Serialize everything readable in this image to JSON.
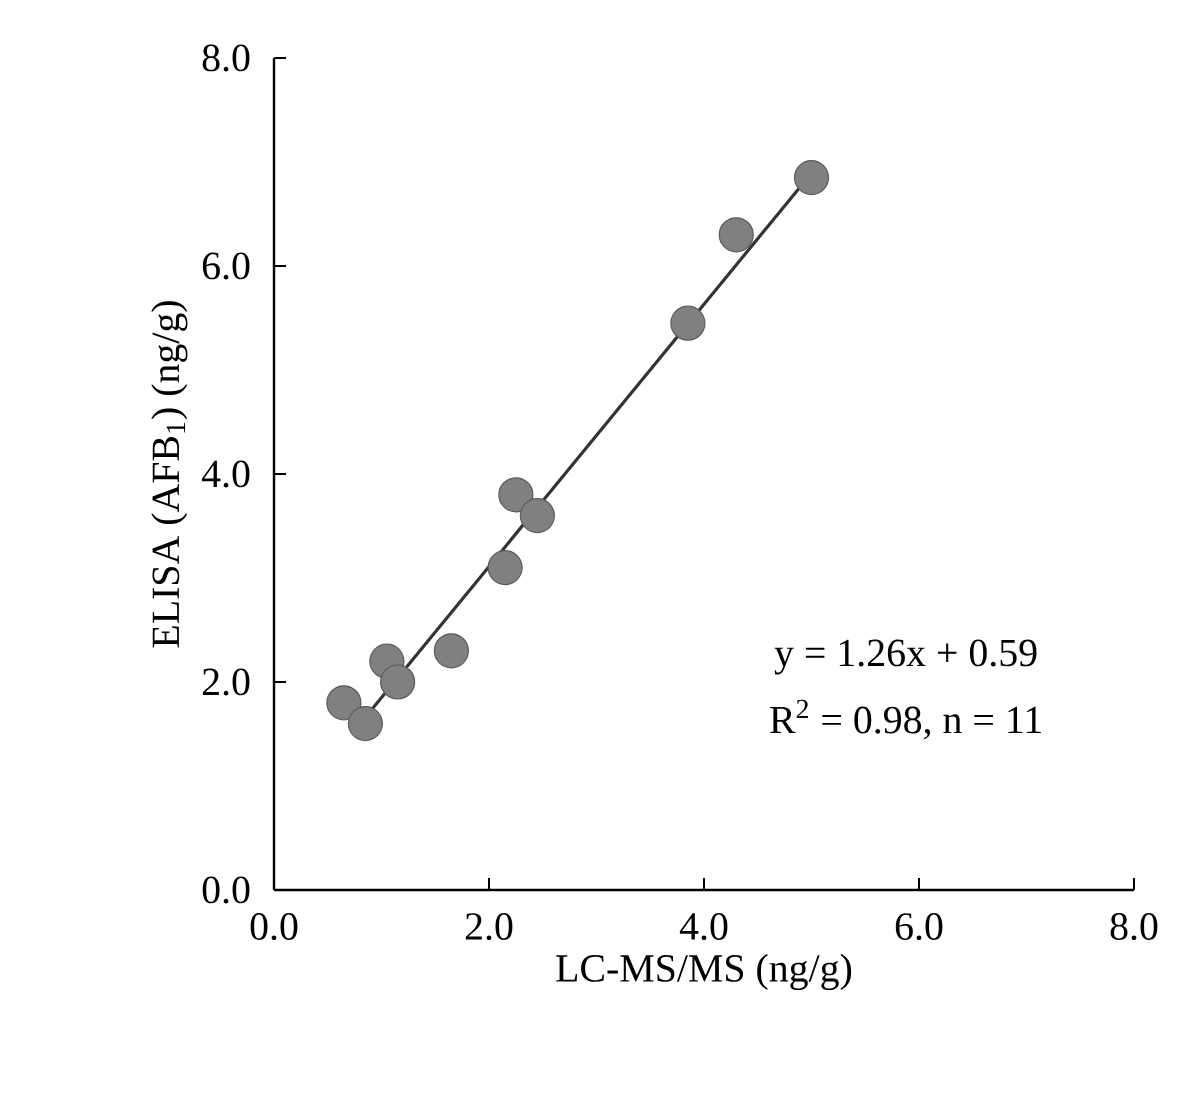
{
  "chart_data": {
    "type": "scatter",
    "xlabel": "LC-MS/MS (ng/g)",
    "ylabel": "ELISA (AFB$_{1}$) (ng/g)",
    "annotations": [
      "y = 1.26x + 0.59",
      "R$^{2}$ = 0.98, n = 11"
    ],
    "series": [
      {
        "color": "#808080",
        "marker": "circle",
        "x": [
          5.0,
          4.3,
          3.85,
          2.25,
          2.45,
          2.15,
          1.65,
          1.05,
          1.15,
          0.65,
          0.85
        ],
        "values": [
          6.85,
          6.3,
          5.45,
          3.8,
          3.6,
          3.1,
          2.3,
          2.2,
          2.0,
          1.8,
          1.6
        ]
      },
      {
        "type": "line",
        "color": "#333333",
        "marker": "none",
        "line_style": "solid",
        "x": [
          0.85,
          4.95
        ],
        "values": [
          1.66,
          6.83
        ]
      }
    ],
    "xlim": [
      0,
      8
    ],
    "ylim": [
      0,
      8
    ],
    "xticks": [
      {
        "value": 0,
        "label": "0.0"
      },
      {
        "value": 2,
        "label": "2.0"
      },
      {
        "value": 4,
        "label": "4.0"
      },
      {
        "value": 6,
        "label": "6.0"
      },
      {
        "value": 8,
        "label": "8.0"
      }
    ],
    "yticks": [
      {
        "value": 0,
        "label": "0.0"
      },
      {
        "value": 2,
        "label": "2.0"
      },
      {
        "value": 4,
        "label": "4.0"
      },
      {
        "value": 6,
        "label": "6.0"
      },
      {
        "value": 8,
        "label": "8.0"
      }
    ],
    "grid": false
  }
}
